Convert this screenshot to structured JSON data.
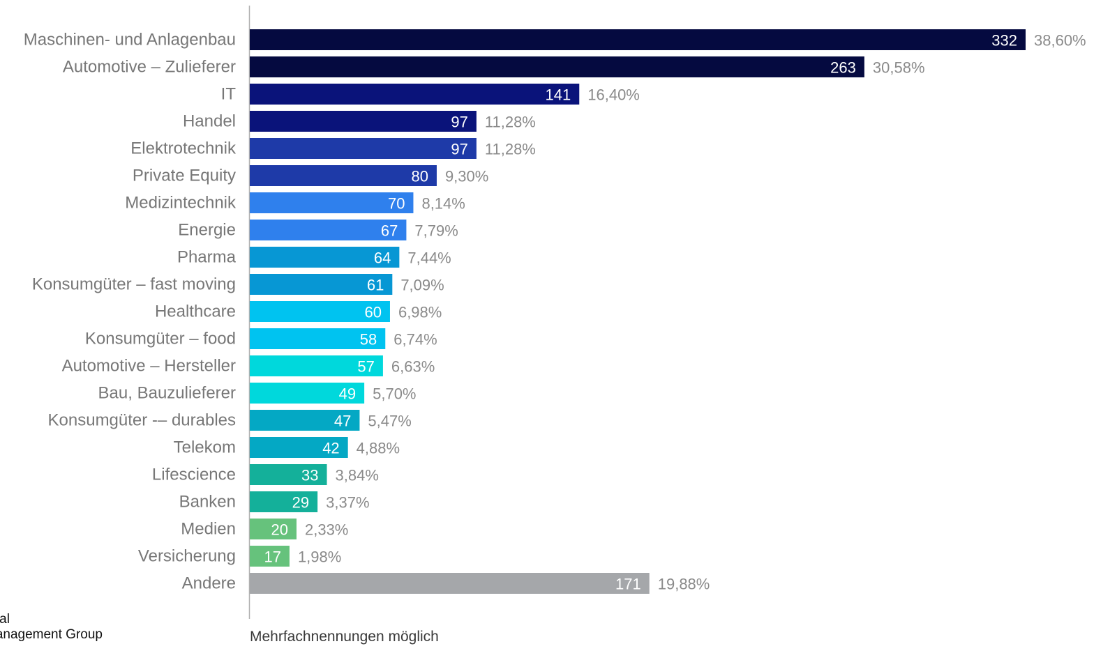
{
  "chart_data": {
    "type": "bar",
    "orientation": "horizontal",
    "categories": [
      "Maschinen- und Anlagenbau",
      "Automotive – Zulieferer",
      "IT",
      "Handel",
      "Elektrotechnik",
      "Private Equity",
      "Medizintechnik",
      "Energie",
      "Pharma",
      "Konsumgüter – fast moving",
      "Healthcare",
      "Konsumgüter – food",
      "Automotive – Hersteller",
      "Bau, Bauzulieferer",
      "Konsumgüter -– durables",
      "Telekom",
      "Lifescience",
      "Banken",
      "Medien",
      "Versicherung",
      "Andere"
    ],
    "values": [
      332,
      263,
      141,
      97,
      97,
      80,
      70,
      67,
      64,
      61,
      60,
      58,
      57,
      49,
      47,
      42,
      33,
      29,
      20,
      17,
      171
    ],
    "value_labels": [
      "332",
      "263",
      "141",
      "97",
      "97",
      "80",
      "70",
      "67",
      "64",
      "61",
      "60",
      "58",
      "57",
      "49",
      "47",
      "42",
      "33",
      "29",
      "20",
      "17",
      "171"
    ],
    "percent_labels": [
      "38,60%",
      "30,58%",
      "16,40%",
      "11,28%",
      "11,28%",
      "9,30%",
      "8,14%",
      "7,79%",
      "7,44%",
      "7,09%",
      "6,98%",
      "6,74%",
      "6,63%",
      "5,70%",
      "5,47%",
      "4,88%",
      "3,84%",
      "3,37%",
      "2,33%",
      "1,98%",
      "19,88%"
    ],
    "colors": [
      "#050a40",
      "#050a40",
      "#0a137a",
      "#0a137a",
      "#1e3aa8",
      "#1e3aa8",
      "#2f80ed",
      "#2f80ed",
      "#0797d4",
      "#0797d4",
      "#00c3f0",
      "#00c3f0",
      "#00d8dc",
      "#00d8dc",
      "#04a8c4",
      "#04a8c4",
      "#14b09a",
      "#14b09a",
      "#66c27c",
      "#66c27c",
      "#a5a7aa"
    ],
    "xlim": [
      0,
      332
    ],
    "grid": false,
    "legend": "none"
  },
  "footnote": "Mehrfachnennungen möglich",
  "logo": {
    "line1": "obal",
    "line2": "Management Group"
  }
}
